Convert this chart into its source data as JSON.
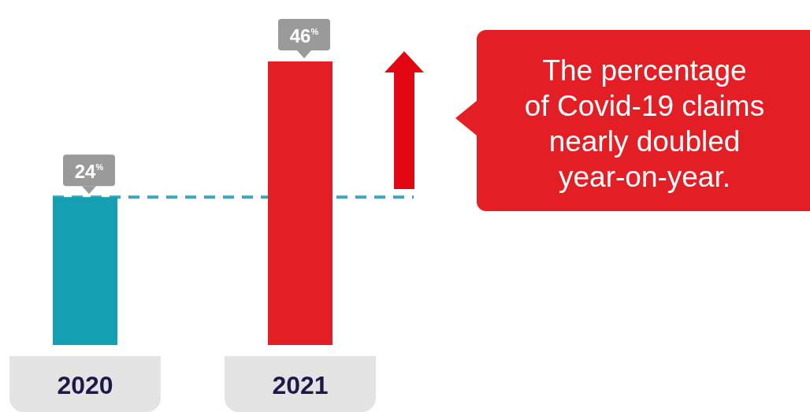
{
  "chart_data": {
    "type": "bar",
    "categories": [
      "2020",
      "2021"
    ],
    "values": [
      24,
      46
    ],
    "colors": [
      "#14a0b2",
      "#e31e24"
    ],
    "value_labels": [
      "24$^{%}$",
      "46$^{%}$"
    ],
    "ref_lines": [
      {
        "axis": "y",
        "value": 24,
        "color": "#3aa7b9",
        "line_style": "dashed"
      }
    ],
    "annotations": [
      "The percentage\nof Covid-19 claims\nnearly doubled\nyear-on-year."
    ]
  }
}
